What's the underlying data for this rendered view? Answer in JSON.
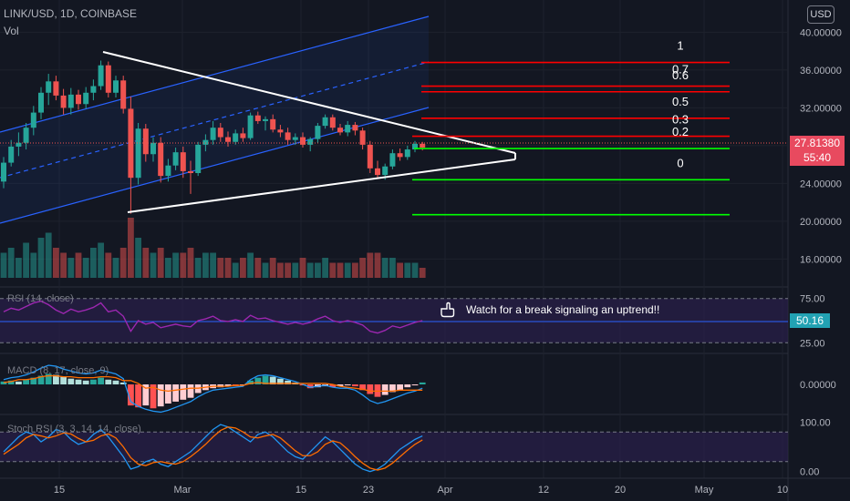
{
  "header": {
    "symbol": "LINK/USD, 1D, COINBASE",
    "vol": "Vol"
  },
  "currency_button": "USD",
  "last_price": {
    "price": "27.81380",
    "countdown": "55:40"
  },
  "rsi_value": "50.16",
  "annotation": {
    "icon": "pointing-hand-icon",
    "text": "Watch for a break signaling an uptrend!!"
  },
  "indicators": {
    "rsi": "RSI (14, close)",
    "macd": "MACD (8, 17, close, 9)",
    "stoch": "Stoch RSI (3, 3, 14, 14, close)"
  },
  "colors": {
    "bg": "#131722",
    "up": "#26a69a",
    "down": "#ef5350",
    "channel": "#2962ff",
    "fib_red": "#ff0000",
    "fib_green": "#00ff00",
    "rsi_band": "#2a1f4a"
  },
  "chart_data": [
    {
      "type": "candlestick",
      "title": "LINK/USD, 1D, COINBASE",
      "y_ticks": [
        "40.00000",
        "36.00000",
        "32.00000",
        "28.00000",
        "24.00000",
        "20.00000",
        "16.00000"
      ],
      "x_ticks": [
        "15",
        "Mar",
        "15",
        "23",
        "Apr",
        "12",
        "20",
        "May",
        "10"
      ],
      "ylim": [
        14.5,
        41
      ],
      "candles": [
        [
          24.2,
          26.8,
          23.5,
          26.2
        ],
        [
          26.2,
          28.6,
          25.8,
          27.9
        ],
        [
          27.9,
          29.4,
          26.9,
          28.3
        ],
        [
          28.3,
          30.4,
          27.6,
          29.9
        ],
        [
          29.9,
          32.2,
          29.1,
          31.5
        ],
        [
          31.5,
          34.2,
          30.8,
          33.6
        ],
        [
          33.6,
          35.6,
          32.3,
          34.8
        ],
        [
          34.8,
          35.4,
          32.8,
          33.3
        ],
        [
          33.3,
          34.0,
          31.3,
          32.0
        ],
        [
          32.0,
          34.1,
          31.3,
          33.4
        ],
        [
          33.4,
          33.9,
          31.8,
          32.4
        ],
        [
          32.4,
          34.2,
          31.9,
          33.6
        ],
        [
          33.6,
          35.0,
          32.8,
          34.3
        ],
        [
          34.3,
          37.0,
          33.9,
          36.5
        ],
        [
          36.5,
          36.9,
          33.1,
          33.6
        ],
        [
          33.6,
          35.4,
          33.1,
          34.9
        ],
        [
          34.9,
          35.4,
          31.4,
          31.9
        ],
        [
          31.9,
          33.2,
          20.8,
          24.6
        ],
        [
          24.6,
          30.4,
          23.9,
          29.8
        ],
        [
          29.8,
          30.3,
          26.3,
          27.1
        ],
        [
          27.1,
          28.9,
          26.3,
          28.3
        ],
        [
          28.3,
          28.9,
          24.1,
          24.8
        ],
        [
          24.8,
          26.6,
          24.2,
          25.9
        ],
        [
          25.9,
          27.8,
          25.4,
          27.3
        ],
        [
          27.3,
          27.9,
          24.6,
          25.3
        ],
        [
          25.3,
          26.4,
          22.9,
          25.1
        ],
        [
          25.1,
          28.4,
          24.8,
          28.1
        ],
        [
          28.1,
          29.2,
          27.4,
          28.6
        ],
        [
          28.6,
          30.6,
          28.1,
          29.9
        ],
        [
          29.9,
          30.4,
          28.4,
          28.9
        ],
        [
          28.9,
          29.5,
          27.9,
          28.4
        ],
        [
          28.4,
          29.7,
          28.1,
          29.3
        ],
        [
          29.3,
          29.9,
          28.4,
          28.8
        ],
        [
          28.8,
          31.5,
          28.6,
          31.2
        ],
        [
          31.2,
          31.6,
          30.3,
          30.6
        ],
        [
          30.6,
          31.1,
          29.6,
          30.8
        ],
        [
          30.8,
          31.3,
          29.4,
          29.7
        ],
        [
          29.7,
          30.2,
          28.9,
          29.4
        ],
        [
          29.4,
          29.9,
          28.1,
          28.6
        ],
        [
          28.6,
          29.3,
          28.1,
          28.9
        ],
        [
          28.9,
          29.4,
          27.8,
          28.1
        ],
        [
          28.1,
          28.9,
          27.4,
          28.7
        ],
        [
          28.7,
          30.4,
          28.3,
          30.1
        ],
        [
          30.1,
          31.3,
          29.8,
          31.0
        ],
        [
          31.0,
          31.3,
          29.6,
          29.9
        ],
        [
          29.9,
          30.3,
          29.1,
          29.4
        ],
        [
          29.4,
          30.6,
          29.0,
          30.2
        ],
        [
          30.2,
          30.5,
          29.1,
          29.6
        ],
        [
          29.6,
          29.9,
          27.6,
          28.1
        ],
        [
          28.1,
          28.5,
          25.1,
          25.6
        ],
        [
          25.6,
          26.4,
          24.6,
          24.9
        ],
        [
          24.9,
          26.1,
          24.4,
          25.8
        ],
        [
          25.8,
          27.6,
          25.5,
          27.2
        ],
        [
          27.2,
          27.7,
          26.4,
          26.8
        ],
        [
          26.8,
          28.0,
          26.5,
          27.6
        ],
        [
          27.6,
          28.5,
          27.3,
          28.2
        ],
        [
          28.2,
          28.4,
          27.5,
          27.8
        ]
      ],
      "volume": [
        5,
        6,
        4,
        7,
        5,
        8,
        9,
        6,
        5,
        4,
        5,
        4,
        6,
        7,
        5,
        4,
        6,
        12,
        8,
        6,
        5,
        6,
        4,
        5,
        5,
        6,
        4,
        5,
        5,
        4,
        4,
        3,
        4,
        5,
        4,
        3,
        4,
        3,
        3,
        3,
        4,
        3,
        3,
        4,
        3,
        3,
        3,
        3,
        4,
        5,
        5,
        4,
        4,
        3,
        3,
        3,
        2
      ],
      "fib_levels": [
        {
          "label": "1",
          "price": 36.8
        },
        {
          "label": "0.7",
          "price": 34.3
        },
        {
          "label": "0.6",
          "price": 33.7
        },
        {
          "label": "0.5",
          "price": 30.9
        },
        {
          "label": "0.3",
          "price": 29.0
        },
        {
          "label": "0.2",
          "price": 27.7
        },
        {
          "label": "0",
          "price": 24.4
        },
        {
          "label": "",
          "price": 20.7
        }
      ]
    },
    {
      "type": "line",
      "title": "RSI (14, close)",
      "y_ticks": [
        "75.00",
        "50.16",
        "25.00"
      ],
      "ylim": [
        15,
        85
      ],
      "values": [
        60,
        64,
        62,
        66,
        70,
        72,
        68,
        62,
        58,
        63,
        60,
        62,
        65,
        70,
        60,
        62,
        55,
        38,
        50,
        46,
        48,
        42,
        44,
        46,
        44,
        43,
        50,
        52,
        55,
        50,
        49,
        51,
        49,
        56,
        52,
        53,
        50,
        48,
        46,
        48,
        46,
        48,
        52,
        55,
        50,
        48,
        50,
        48,
        45,
        38,
        36,
        39,
        44,
        42,
        45,
        48,
        50
      ]
    },
    {
      "type": "bar",
      "title": "MACD (8, 17, close, 9)",
      "y_ticks": [
        "0.00000"
      ],
      "ylim": [
        -3,
        3.2
      ],
      "histogram": [
        0.3,
        0.4,
        0.3,
        0.5,
        0.7,
        0.9,
        1.1,
        1.0,
        0.8,
        0.6,
        0.5,
        0.4,
        0.5,
        0.7,
        0.5,
        0.4,
        0.2,
        -2.2,
        -2.4,
        -2.2,
        -2.5,
        -2.3,
        -2.0,
        -1.8,
        -1.6,
        -1.4,
        -0.9,
        -0.6,
        -0.4,
        -0.3,
        -0.2,
        -0.2,
        -0.1,
        0.4,
        0.7,
        0.9,
        0.8,
        0.6,
        0.4,
        0.2,
        -0.1,
        -0.4,
        -0.3,
        -0.2,
        -0.3,
        -0.2,
        -0.1,
        -0.2,
        -0.6,
        -1.0,
        -1.3,
        -1.1,
        -0.8,
        -0.6,
        -0.3,
        -0.1,
        0.2
      ],
      "macd": [
        0.5,
        0.7,
        0.8,
        1.0,
        1.3,
        1.7,
        2.0,
        1.9,
        1.6,
        1.4,
        1.2,
        1.1,
        1.2,
        1.5,
        1.3,
        1.1,
        0.6,
        -1.8,
        -2.3,
        -2.6,
        -2.8,
        -2.9,
        -2.7,
        -2.4,
        -2.1,
        -1.8,
        -1.3,
        -0.9,
        -0.6,
        -0.5,
        -0.4,
        -0.3,
        -0.2,
        0.5,
        0.9,
        1.0,
        0.9,
        0.7,
        0.5,
        0.3,
        0.0,
        -0.3,
        -0.2,
        -0.1,
        -0.3,
        -0.4,
        -0.4,
        -0.6,
        -1.1,
        -1.7,
        -2.0,
        -1.8,
        -1.5,
        -1.2,
        -0.9,
        -0.7,
        -0.4
      ],
      "signal": [
        0.2,
        0.3,
        0.5,
        0.5,
        0.6,
        0.8,
        0.9,
        0.9,
        0.8,
        0.8,
        0.7,
        0.7,
        0.7,
        0.8,
        0.8,
        0.7,
        0.4,
        0.4,
        0.1,
        -0.4,
        -0.3,
        -0.6,
        -0.7,
        -0.6,
        -0.5,
        -0.4,
        -0.4,
        -0.3,
        -0.2,
        -0.2,
        -0.2,
        -0.1,
        -0.1,
        0.1,
        0.2,
        0.1,
        0.1,
        0.1,
        0.1,
        0.1,
        0.1,
        0.1,
        0.1,
        0.1,
        0.0,
        -0.2,
        -0.3,
        -0.4,
        -0.5,
        -0.7,
        -0.7,
        -0.7,
        -0.7,
        -0.6,
        -0.6,
        -0.6,
        -0.6
      ]
    },
    {
      "type": "line",
      "title": "Stoch RSI (3, 3, 14, 14, close)",
      "y_ticks": [
        "100.00",
        "0.00"
      ],
      "ylim": [
        -8,
        108
      ],
      "k": [
        40,
        55,
        70,
        80,
        75,
        60,
        70,
        85,
        80,
        65,
        55,
        60,
        75,
        85,
        70,
        50,
        30,
        5,
        10,
        20,
        25,
        15,
        10,
        20,
        30,
        40,
        55,
        70,
        85,
        95,
        90,
        80,
        70,
        60,
        75,
        80,
        70,
        55,
        40,
        30,
        25,
        40,
        55,
        70,
        60,
        45,
        30,
        15,
        5,
        0,
        5,
        15,
        30,
        45,
        55,
        65,
        72
      ],
      "d": [
        35,
        45,
        55,
        68,
        75,
        72,
        68,
        72,
        78,
        76,
        67,
        60,
        63,
        72,
        76,
        68,
        50,
        28,
        15,
        12,
        18,
        20,
        17,
        15,
        20,
        30,
        42,
        55,
        70,
        83,
        90,
        88,
        80,
        70,
        68,
        72,
        75,
        68,
        55,
        42,
        32,
        32,
        40,
        55,
        62,
        58,
        45,
        30,
        17,
        7,
        3,
        7,
        17,
        30,
        43,
        55,
        64
      ],
      "bands": [
        80,
        20
      ]
    }
  ]
}
